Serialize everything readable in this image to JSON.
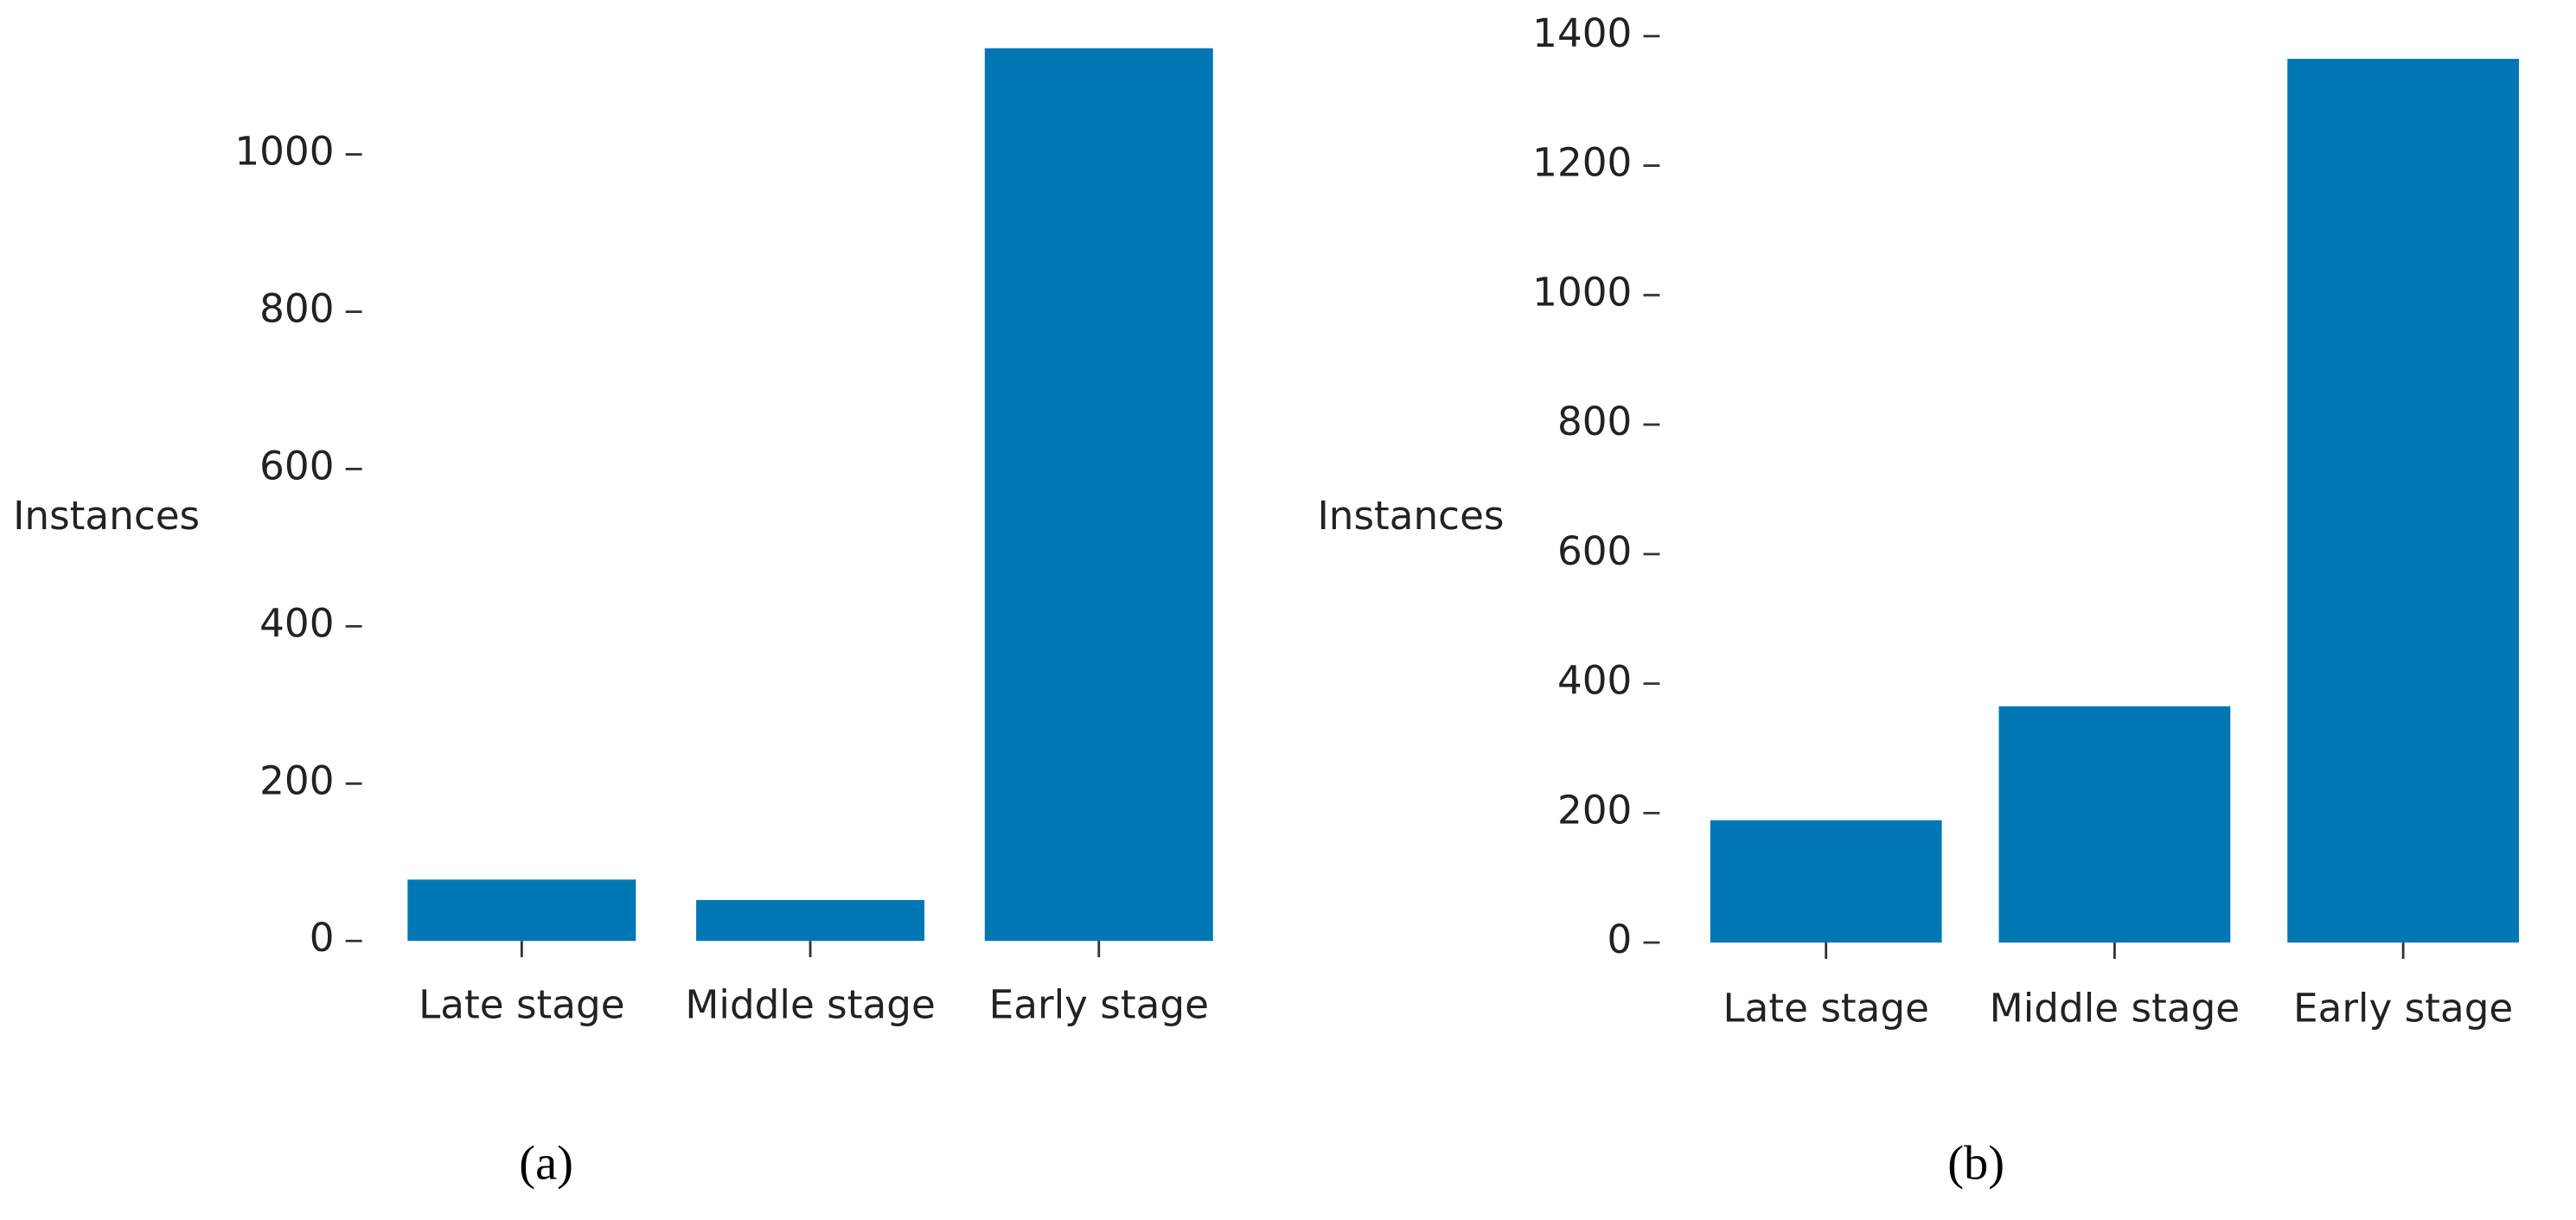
{
  "chart_data": [
    {
      "type": "bar",
      "caption": "(a)",
      "y_label": "Instances",
      "categories": [
        "Late stage",
        "Middle stage",
        "Early stage"
      ],
      "values": [
        78,
        52,
        1135
      ],
      "color": "#0077b5",
      "ylim": [
        0,
        1140
      ],
      "yticks": [
        0,
        200,
        400,
        600,
        800,
        1000
      ],
      "grid": false
    },
    {
      "type": "bar",
      "caption": "(b)",
      "y_label": "Instances",
      "categories": [
        "Late stage",
        "Middle stage",
        "Early stage"
      ],
      "values": [
        189,
        365,
        1365
      ],
      "color": "#0077b5",
      "ylim": [
        0,
        1400
      ],
      "yticks": [
        0,
        200,
        400,
        600,
        800,
        1000,
        1200,
        1400
      ],
      "grid": false
    }
  ]
}
